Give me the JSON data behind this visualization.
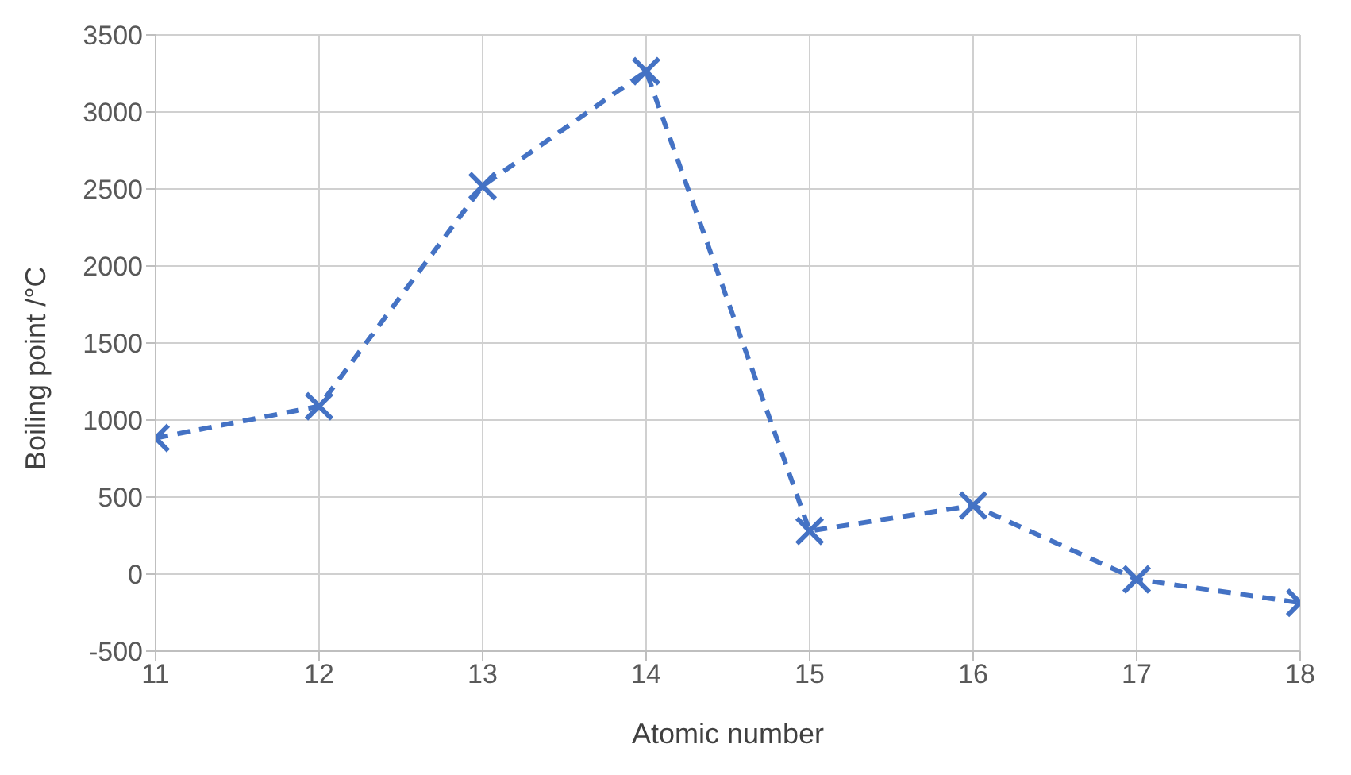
{
  "chart_data": {
    "type": "line",
    "xlabel": "Atomic number",
    "ylabel": "Boiling point /°C",
    "x": [
      11,
      12,
      13,
      14,
      15,
      16,
      17,
      18
    ],
    "series": [
      {
        "color": "#4472c4",
        "values": [
          883,
          1090,
          2519,
          3265,
          280,
          445,
          -34,
          -186
        ]
      }
    ],
    "xlim": [
      11,
      18
    ],
    "xticks": [
      11,
      12,
      13,
      14,
      15,
      16,
      17,
      18
    ],
    "ylim": [
      -500,
      3500
    ],
    "yticks": [
      -500,
      0,
      500,
      1000,
      1500,
      2000,
      2500,
      3000,
      3500
    ],
    "grid": true,
    "legend": false,
    "marker": "cross",
    "line_style": "dashed"
  }
}
